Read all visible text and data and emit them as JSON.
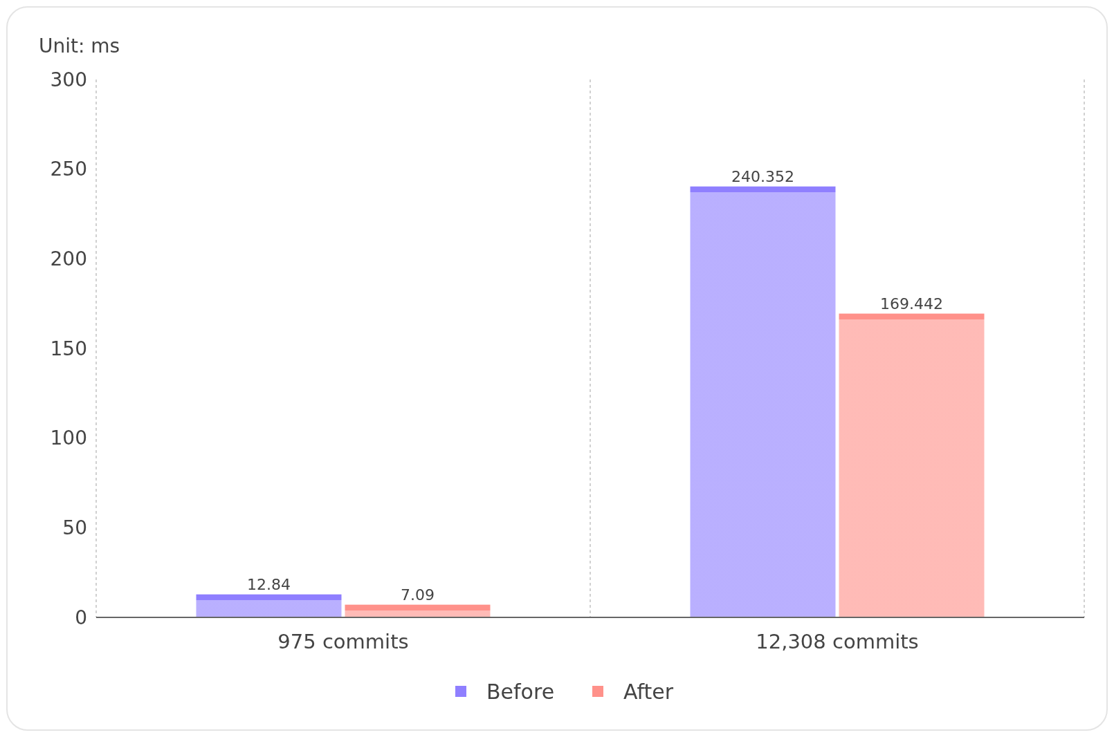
{
  "chart_data": {
    "type": "bar",
    "ylabel": "Unit: ms",
    "categories": [
      "975 commits",
      "12,308 commits"
    ],
    "series": [
      {
        "name": "Before",
        "color": "#8f7fff",
        "values": [
          12.84,
          240.352
        ]
      },
      {
        "name": "After",
        "color": "#ff918a",
        "values": [
          7.09,
          169.442
        ]
      }
    ],
    "ylim": [
      0,
      300
    ],
    "yticks": [
      0,
      50,
      100,
      150,
      200,
      250,
      300
    ],
    "grid": "x",
    "legend": "bottom",
    "data_labels": true
  }
}
